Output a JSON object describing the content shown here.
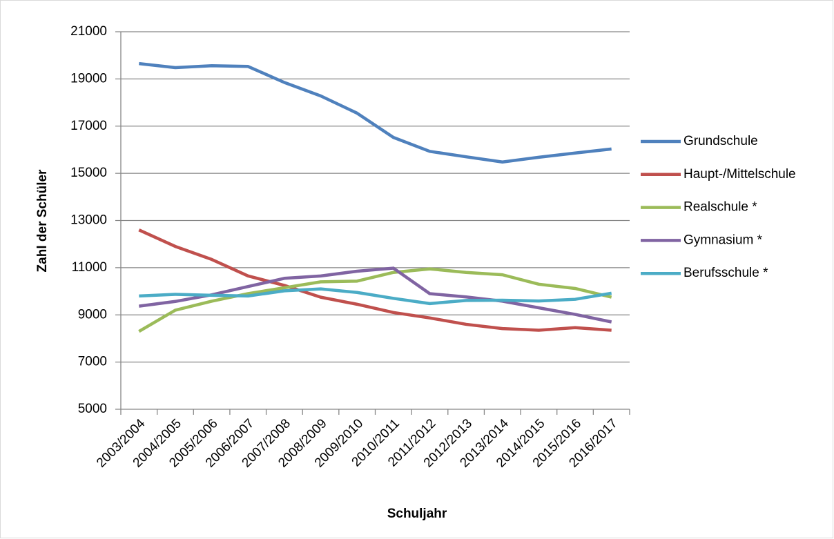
{
  "chart_data": {
    "type": "line",
    "x_label": "Schuljahr",
    "y_label": "Zahl der Schüler",
    "categories": [
      "2003/2004",
      "2004/2005",
      "2005/2006",
      "2006/2007",
      "2007/2008",
      "2008/2009",
      "2009/2010",
      "2010/2011",
      "2011/2012",
      "2012/2013",
      "2013/2014",
      "2014/2015",
      "2015/2016",
      "2016/2017"
    ],
    "series": [
      {
        "name": "Grundschule",
        "color": "#4f81bd",
        "values": [
          19650,
          19480,
          19560,
          19530,
          18850,
          18280,
          17550,
          16520,
          15930,
          15700,
          15480,
          15680,
          15860,
          16030
        ]
      },
      {
        "name": "Haupt-/Mittelschule",
        "color": "#c0504d",
        "values": [
          12600,
          11900,
          11350,
          10650,
          10250,
          9750,
          9450,
          9100,
          8870,
          8600,
          8420,
          8350,
          8460,
          8350
        ]
      },
      {
        "name": "Realschule *",
        "color": "#9bbb59",
        "values": [
          8300,
          9200,
          9580,
          9900,
          10150,
          10400,
          10430,
          10800,
          10950,
          10800,
          10700,
          10300,
          10120,
          9750
        ]
      },
      {
        "name": "Gymnasium *",
        "color": "#8064a2",
        "values": [
          9370,
          9570,
          9850,
          10200,
          10550,
          10650,
          10850,
          10980,
          9900,
          9760,
          9580,
          9300,
          9020,
          8700
        ]
      },
      {
        "name": "Berufsschule *",
        "color": "#4bacc6",
        "values": [
          9800,
          9870,
          9830,
          9800,
          10020,
          10100,
          9950,
          9700,
          9480,
          9610,
          9620,
          9590,
          9660,
          9920
        ]
      }
    ],
    "ylim": [
      5000,
      21000
    ],
    "yticks": [
      5000,
      7000,
      9000,
      11000,
      13000,
      15000,
      17000,
      19000,
      21000
    ],
    "grid": true,
    "legend": "right"
  }
}
